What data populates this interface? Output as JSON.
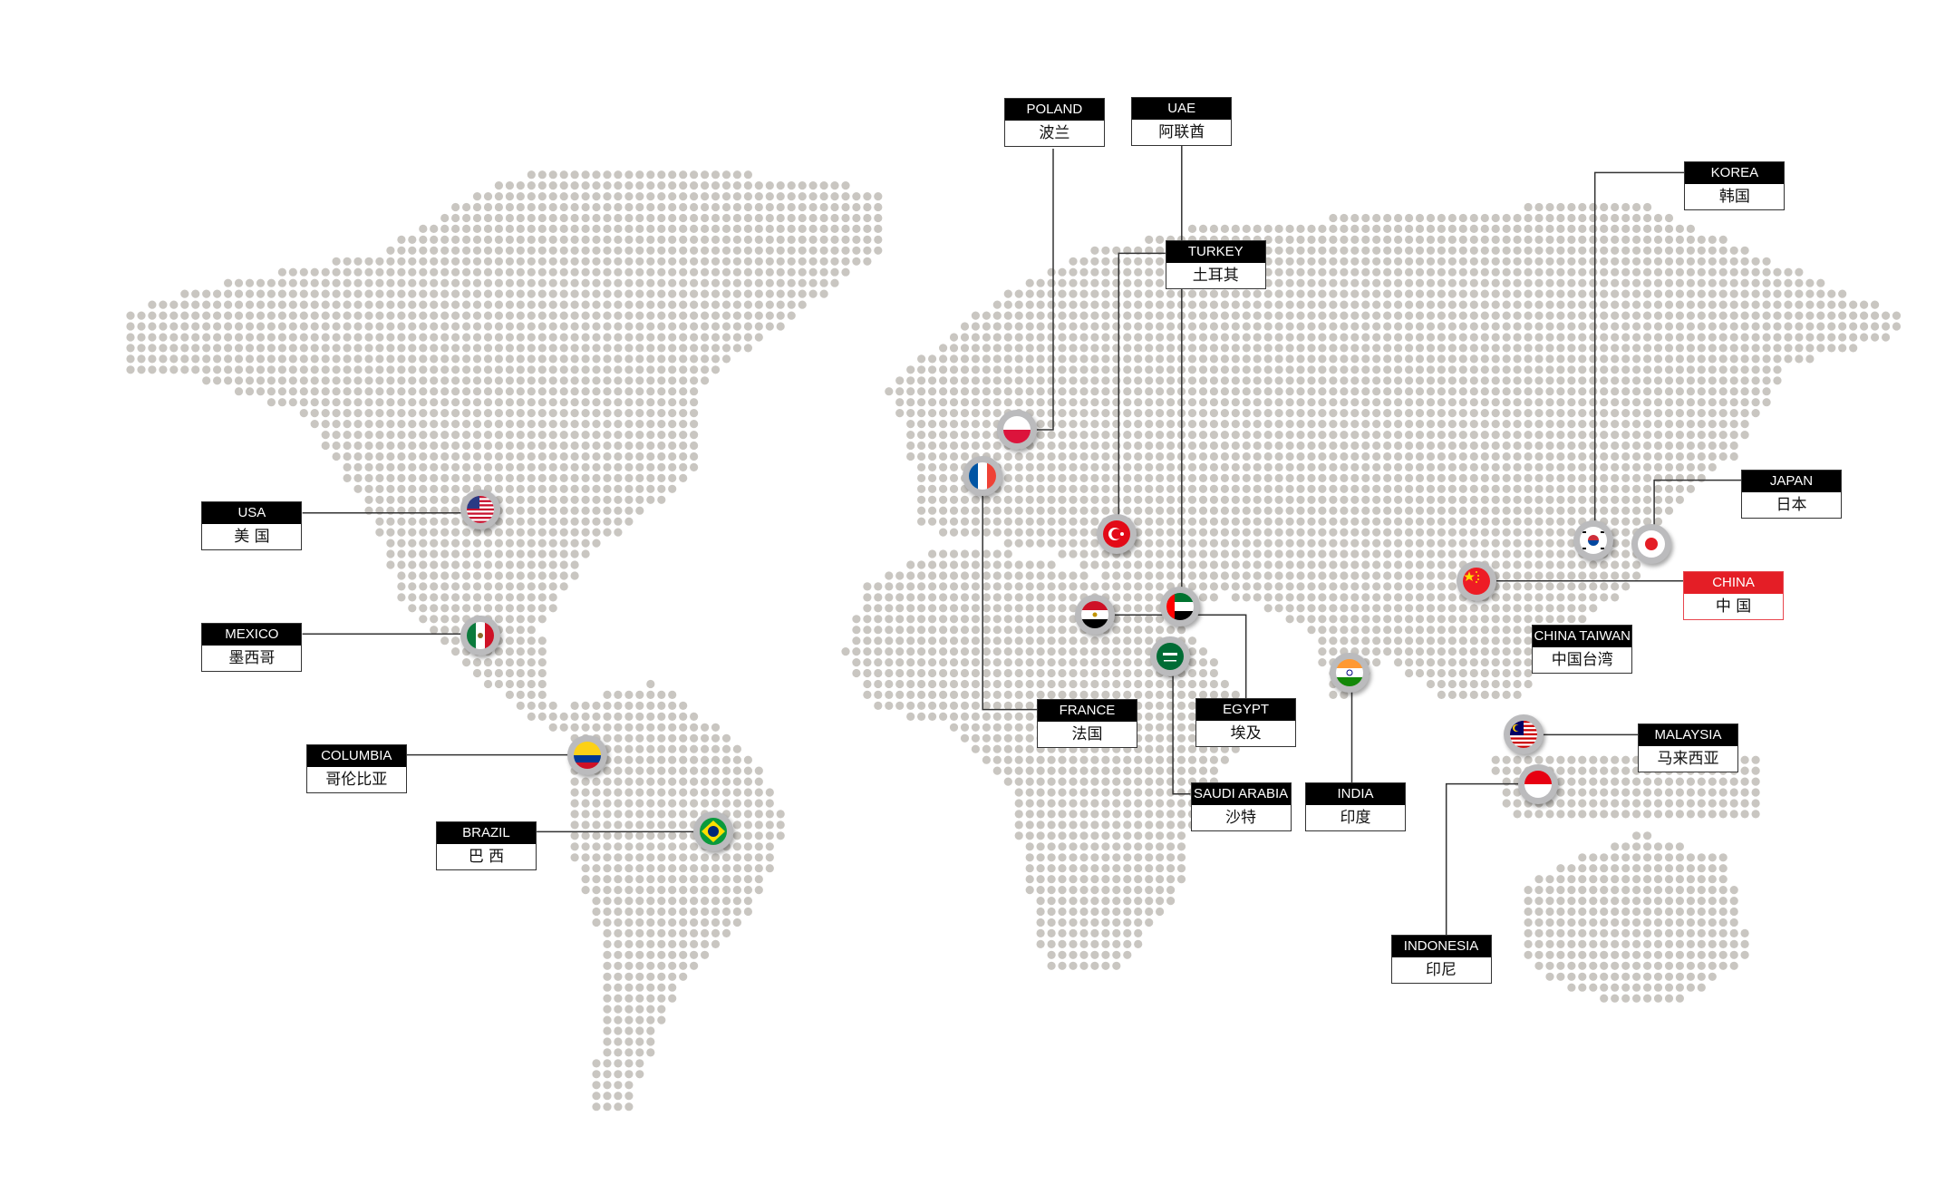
{
  "map": {
    "dot_color": "#c9c6c1",
    "line_color": "#333333",
    "highlight_color": "#e41e26"
  },
  "locations": [
    {
      "id": "usa",
      "en": "USA",
      "cn": "美 国",
      "flag": "usa-flag"
    },
    {
      "id": "mexico",
      "en": "MEXICO",
      "cn": "墨西哥",
      "flag": "mexico-flag"
    },
    {
      "id": "columbia",
      "en": "COLUMBIA",
      "cn": "哥伦比亚",
      "flag": "colombia-flag"
    },
    {
      "id": "brazil",
      "en": "BRAZIL",
      "cn": "巴 西",
      "flag": "brazil-flag"
    },
    {
      "id": "poland",
      "en": "POLAND",
      "cn": "波兰",
      "flag": "poland-flag"
    },
    {
      "id": "france",
      "en": "FRANCE",
      "cn": "法国",
      "flag": "france-flag"
    },
    {
      "id": "turkey",
      "en": "TURKEY",
      "cn": "土耳其",
      "flag": "turkey-flag"
    },
    {
      "id": "uae",
      "en": "UAE",
      "cn": "阿联酋",
      "flag": "uae-flag"
    },
    {
      "id": "egypt",
      "en": "EGYPT",
      "cn": "埃及",
      "flag": "egypt-flag"
    },
    {
      "id": "saudi",
      "en": "SAUDI ARABIA",
      "cn": "沙特",
      "flag": "saudi-arabia-flag"
    },
    {
      "id": "india",
      "en": "INDIA",
      "cn": "印度",
      "flag": "india-flag"
    },
    {
      "id": "china",
      "en": "CHINA",
      "cn": "中 国",
      "flag": "china-flag",
      "highlight": true
    },
    {
      "id": "korea",
      "en": "KOREA",
      "cn": "韩国",
      "flag": "korea-flag"
    },
    {
      "id": "japan",
      "en": "JAPAN",
      "cn": "日本",
      "flag": "japan-flag"
    },
    {
      "id": "taiwan",
      "en": "CHINA TAIWAN",
      "cn": "中国台湾"
    },
    {
      "id": "malaysia",
      "en": "MALAYSIA",
      "cn": "马来西亚",
      "flag": "malaysia-flag"
    },
    {
      "id": "indonesia",
      "en": "INDONESIA",
      "cn": "印尼",
      "flag": "indonesia-flag"
    }
  ]
}
